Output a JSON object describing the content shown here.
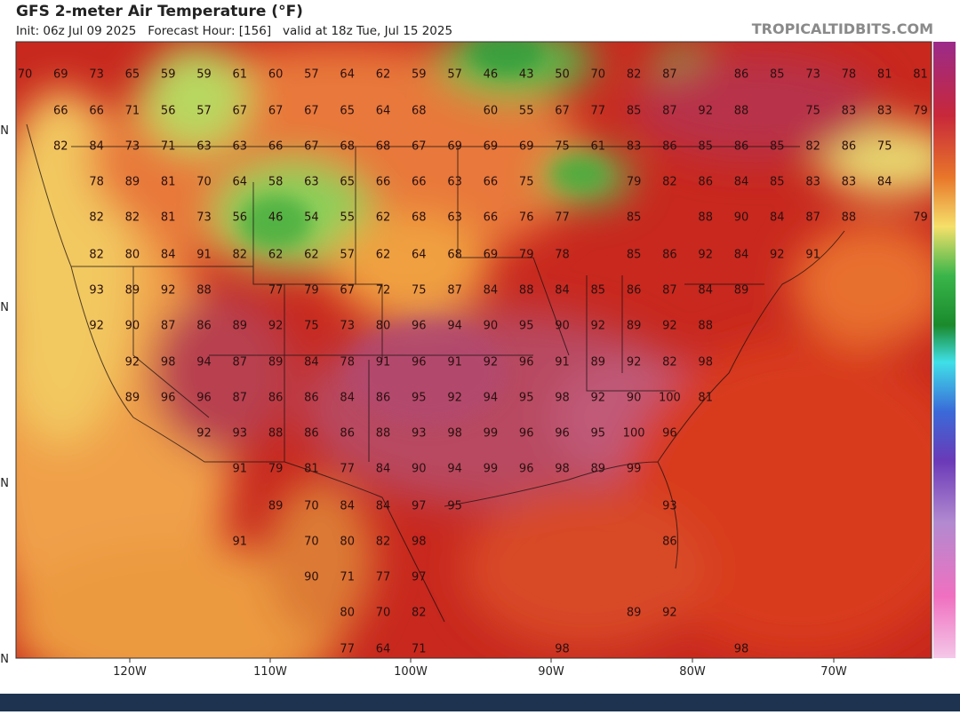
{
  "header": {
    "title": "GFS 2-meter Air Temperature (°F)",
    "subtitle": "Init: 06z Jul 09 2025   Forecast Hour: [156]   valid at 18z Tue, Jul 15 2025",
    "brand": "TROPICALTIDBITS.COM"
  },
  "map": {
    "lon_labels": [
      "120W",
      "110W",
      "100W",
      "90W",
      "80W",
      "70W"
    ],
    "lat_labels": [
      "N",
      "N",
      "N",
      "N"
    ],
    "temperature_labels": [
      [
        70,
        69,
        73,
        65,
        59,
        59,
        61,
        60,
        57,
        64,
        62,
        59,
        57,
        46,
        43,
        50,
        70,
        82,
        87,
        null,
        86,
        85,
        73,
        78,
        81,
        81
      ],
      [
        null,
        66,
        66,
        71,
        56,
        57,
        67,
        67,
        67,
        65,
        64,
        68,
        null,
        60,
        55,
        67,
        77,
        85,
        87,
        92,
        88,
        null,
        75,
        83,
        83,
        79
      ],
      [
        null,
        82,
        84,
        73,
        71,
        63,
        63,
        66,
        67,
        68,
        68,
        67,
        69,
        69,
        69,
        75,
        61,
        83,
        86,
        85,
        86,
        85,
        82,
        86,
        75
      ],
      [
        null,
        null,
        78,
        89,
        81,
        70,
        64,
        58,
        63,
        65,
        66,
        66,
        63,
        66,
        75,
        null,
        null,
        79,
        82,
        86,
        84,
        85,
        83,
        83,
        84
      ],
      [
        null,
        null,
        82,
        82,
        81,
        73,
        56,
        46,
        54,
        55,
        62,
        68,
        63,
        66,
        76,
        77,
        null,
        85,
        null,
        88,
        90,
        84,
        87,
        88,
        null,
        79
      ],
      [
        null,
        null,
        82,
        80,
        84,
        91,
        82,
        62,
        62,
        57,
        62,
        64,
        68,
        69,
        79,
        78,
        null,
        85,
        86,
        92,
        84,
        92,
        91
      ],
      [
        null,
        null,
        93,
        89,
        92,
        88,
        null,
        77,
        79,
        67,
        72,
        75,
        87,
        84,
        88,
        84,
        85,
        86,
        87,
        84,
        89
      ],
      [
        null,
        null,
        92,
        90,
        87,
        86,
        89,
        92,
        75,
        73,
        80,
        96,
        94,
        90,
        95,
        90,
        92,
        89,
        92,
        88
      ],
      [
        null,
        null,
        null,
        92,
        98,
        94,
        87,
        89,
        84,
        78,
        91,
        96,
        91,
        92,
        96,
        91,
        89,
        92,
        82,
        98
      ],
      [
        null,
        null,
        null,
        89,
        96,
        96,
        87,
        86,
        86,
        84,
        86,
        95,
        92,
        94,
        95,
        98,
        92,
        90,
        100,
        81
      ],
      [
        null,
        null,
        null,
        null,
        null,
        92,
        93,
        88,
        86,
        86,
        88,
        93,
        98,
        99,
        96,
        96,
        95,
        100,
        96
      ],
      [
        null,
        null,
        null,
        null,
        null,
        null,
        91,
        79,
        81,
        77,
        84,
        90,
        94,
        99,
        96,
        98,
        89,
        99
      ],
      [
        null,
        null,
        null,
        null,
        null,
        null,
        null,
        89,
        70,
        84,
        84,
        97,
        95,
        null,
        null,
        null,
        null,
        null,
        93
      ],
      [
        null,
        null,
        null,
        null,
        null,
        null,
        91,
        null,
        70,
        80,
        82,
        98,
        null,
        null,
        null,
        null,
        null,
        null,
        86
      ],
      [
        null,
        null,
        null,
        null,
        null,
        null,
        null,
        null,
        90,
        71,
        77,
        97
      ],
      [
        null,
        null,
        null,
        null,
        null,
        null,
        null,
        null,
        null,
        80,
        70,
        82,
        null,
        null,
        null,
        null,
        null,
        89,
        92
      ],
      [
        null,
        null,
        null,
        null,
        null,
        null,
        null,
        null,
        null,
        77,
        64,
        71,
        null,
        null,
        null,
        98,
        null,
        null,
        null,
        null,
        98
      ]
    ]
  }
}
